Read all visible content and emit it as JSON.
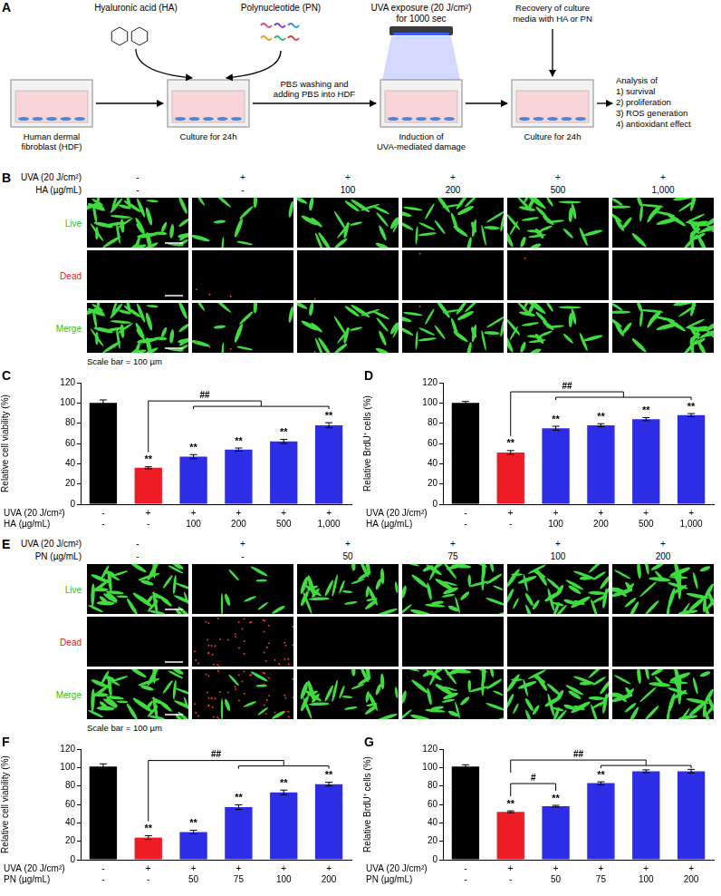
{
  "schematic": {
    "panel": "A",
    "inputs": {
      "ha": "Hyaluronic acid (HA)",
      "pn": "Polynucleotide (PN)",
      "uva": "UVA exposure (20 J/cm²) for 1000 sec",
      "wash": "PBS washing and adding PBS into HDF",
      "recovery": "Recovery of culture media with HA or PN"
    },
    "steps": [
      "Human dermal fibroblast (HDF)",
      "Culture for 24h",
      "Induction of UVA-mediated damage",
      "Culture for 24h"
    ],
    "analysis": {
      "title": "Analysis of",
      "items": [
        "1) survival",
        "2) proliferation",
        "3) ROS generation",
        "4) antioxidant effect"
      ]
    }
  },
  "micrographs": [
    {
      "panel": "B",
      "header": [
        {
          "label": "UVA (20 J/cm²)",
          "values": [
            "-",
            "+",
            "+",
            "+",
            "+",
            "+"
          ]
        },
        {
          "label": "HA (µg/mL)",
          "values": [
            "-",
            "-",
            "100",
            "200",
            "500",
            "1,000"
          ]
        }
      ],
      "rows": [
        "Live",
        "Dead",
        "Merge"
      ],
      "scale_bar": "Scale bar = 100 µm"
    },
    {
      "panel": "E",
      "header": [
        {
          "label": "UVA (20 J/cm²)",
          "values": [
            "-",
            "+",
            "+",
            "+",
            "+",
            "+"
          ]
        },
        {
          "label": "PN (µg/mL)",
          "values": [
            "-",
            "-",
            "50",
            "75",
            "100",
            "200"
          ]
        }
      ],
      "rows": [
        "Live",
        "Dead",
        "Merge"
      ],
      "scale_bar": "Scale bar = 100 µm"
    }
  ],
  "chart_data": [
    {
      "panel": "C",
      "type": "bar",
      "y_label": "Relative cell viability (%)",
      "x_row_titles": [
        "UVA (20 J/cm²)",
        "HA (µg/mL)"
      ],
      "categories": [
        [
          "-",
          "-"
        ],
        [
          "+",
          "-"
        ],
        [
          "+",
          "100"
        ],
        [
          "+",
          "200"
        ],
        [
          "+",
          "500"
        ],
        [
          "+",
          "1,000"
        ]
      ],
      "values": [
        100,
        36,
        47,
        54,
        62,
        78
      ],
      "errors": [
        3,
        1,
        2,
        1.5,
        2,
        2.5
      ],
      "colors": [
        "#000000",
        "#ee1c25",
        "#2d2de6",
        "#2d2de6",
        "#2d2de6",
        "#2d2de6"
      ],
      "ylim": [
        0,
        120
      ],
      "yticks": [
        0,
        20,
        40,
        60,
        80,
        100,
        120
      ],
      "grid": false,
      "annotations": [
        {
          "text": "**",
          "index": 1
        },
        {
          "text": "**",
          "index": 2
        },
        {
          "text": "**",
          "index": 3
        },
        {
          "text": "**",
          "index": 4
        },
        {
          "text": "**",
          "index": 5
        }
      ],
      "brackets": [
        {
          "text": "##",
          "from": 1,
          "to": [
            2,
            5
          ]
        }
      ]
    },
    {
      "panel": "D",
      "type": "bar",
      "y_label": "Relative BrdU⁺ cells (%)",
      "x_row_titles": [
        "UVA (20 J/cm²)",
        "HA (µg/mL)"
      ],
      "categories": [
        [
          "-",
          "-"
        ],
        [
          "+",
          "-"
        ],
        [
          "+",
          "100"
        ],
        [
          "+",
          "200"
        ],
        [
          "+",
          "500"
        ],
        [
          "+",
          "1,000"
        ]
      ],
      "values": [
        100,
        51,
        75,
        78,
        84,
        88
      ],
      "errors": [
        1.5,
        2,
        2,
        1.5,
        1.5,
        1.5
      ],
      "colors": [
        "#000000",
        "#ee1c25",
        "#2d2de6",
        "#2d2de6",
        "#2d2de6",
        "#2d2de6"
      ],
      "ylim": [
        0,
        120
      ],
      "yticks": [
        0,
        20,
        40,
        60,
        80,
        100,
        120
      ],
      "grid": false,
      "annotations": [
        {
          "text": "**",
          "index": 1
        },
        {
          "text": "**",
          "index": 2
        },
        {
          "text": "**",
          "index": 3
        },
        {
          "text": "**",
          "index": 4
        },
        {
          "text": "**",
          "index": 5
        }
      ],
      "brackets": [
        {
          "text": "##",
          "from": 1,
          "to": [
            2,
            5
          ]
        }
      ]
    },
    {
      "panel": "F",
      "type": "bar",
      "y_label": "Relative cell viability (%)",
      "x_row_titles": [
        "UVA (20 J/cm²)",
        "PN (µg/mL)"
      ],
      "categories": [
        [
          "-",
          "-"
        ],
        [
          "+",
          "-"
        ],
        [
          "+",
          "50"
        ],
        [
          "+",
          "75"
        ],
        [
          "+",
          "100"
        ],
        [
          "+",
          "200"
        ]
      ],
      "values": [
        101,
        24,
        30,
        57,
        73,
        82
      ],
      "errors": [
        3,
        2,
        2,
        2.5,
        2.5,
        2
      ],
      "colors": [
        "#000000",
        "#ee1c25",
        "#2d2de6",
        "#2d2de6",
        "#2d2de6",
        "#2d2de6"
      ],
      "ylim": [
        0,
        120
      ],
      "yticks": [
        0,
        20,
        40,
        60,
        80,
        100,
        120
      ],
      "grid": false,
      "annotations": [
        {
          "text": "**",
          "index": 1
        },
        {
          "text": "**",
          "index": 2
        },
        {
          "text": "**",
          "index": 3
        },
        {
          "text": "**",
          "index": 4
        },
        {
          "text": "**",
          "index": 5
        }
      ],
      "brackets": [
        {
          "text": "##",
          "from": 1,
          "to": [
            3,
            5
          ]
        }
      ]
    },
    {
      "panel": "G",
      "type": "bar",
      "y_label": "Relative BrdU⁺ cells (%)",
      "x_row_titles": [
        "UVA (20 J/cm²)",
        "PN (µg/mL)"
      ],
      "categories": [
        [
          "-",
          "-"
        ],
        [
          "+",
          "-"
        ],
        [
          "+",
          "50"
        ],
        [
          "+",
          "75"
        ],
        [
          "+",
          "100"
        ],
        [
          "+",
          "200"
        ]
      ],
      "values": [
        101,
        52,
        58,
        83,
        96,
        96
      ],
      "errors": [
        2,
        1,
        1,
        1.5,
        1.5,
        2
      ],
      "colors": [
        "#000000",
        "#ee1c25",
        "#2d2de6",
        "#2d2de6",
        "#2d2de6",
        "#2d2de6"
      ],
      "ylim": [
        0,
        120
      ],
      "yticks": [
        0,
        20,
        40,
        60,
        80,
        100,
        120
      ],
      "grid": false,
      "annotations": [
        {
          "text": "**",
          "index": 1
        },
        {
          "text": "**",
          "index": 2
        },
        {
          "text": "**",
          "index": 3
        }
      ],
      "brackets": [
        {
          "text": "#",
          "from": 1,
          "to": [
            2,
            2
          ]
        },
        {
          "text": "##",
          "from": 1,
          "to": [
            3,
            5
          ]
        }
      ]
    }
  ]
}
